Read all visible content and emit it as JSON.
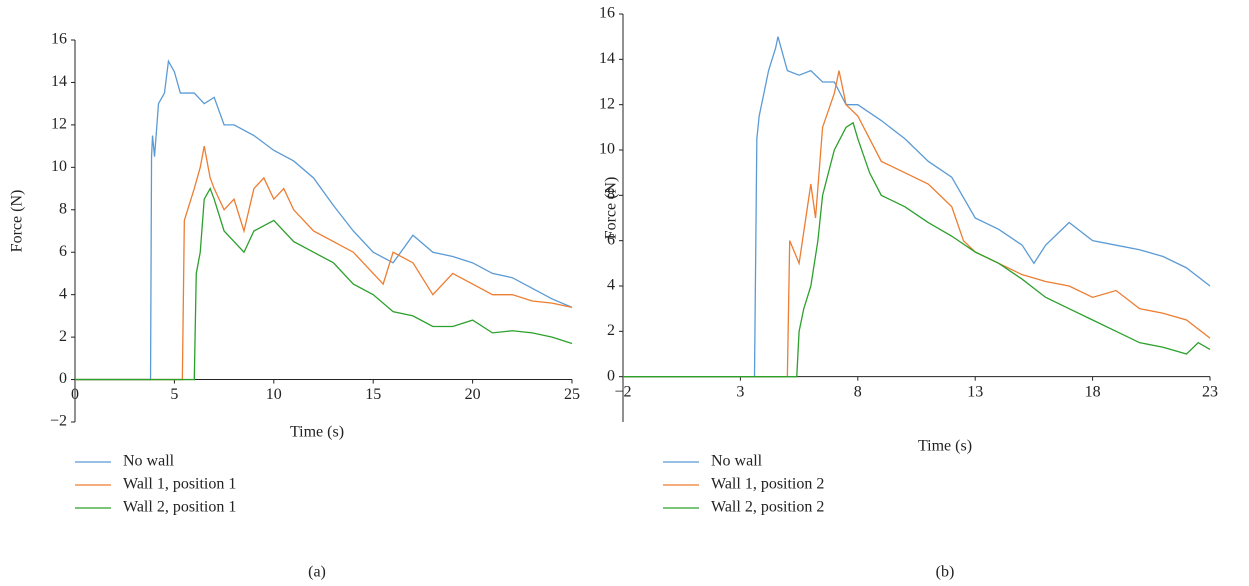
{
  "chart_data": [
    {
      "type": "line",
      "caption": "(a)",
      "x_label": "Time (s)",
      "y_label": "Force (N)",
      "xlim": [
        0,
        25
      ],
      "xticks": [
        0,
        5,
        10,
        15,
        20,
        25
      ],
      "ylim": [
        -2,
        16
      ],
      "yticks": [
        {
          "value": -2,
          "label": "−2"
        },
        0,
        2,
        4,
        6,
        8,
        10,
        12,
        14,
        16
      ],
      "series": [
        {
          "name": "No wall",
          "color": "#5b9bd5",
          "x": [
            0,
            3.8,
            3.85,
            3.9,
            4.0,
            4.2,
            4.5,
            4.7,
            5,
            5.3,
            6,
            6.5,
            7,
            7.5,
            8,
            9,
            10,
            11,
            12,
            13,
            14,
            15,
            16,
            17,
            18,
            19,
            20,
            21,
            22,
            23,
            24,
            25
          ],
          "values": [
            0,
            0,
            10.5,
            11.5,
            10.5,
            13,
            13.5,
            15,
            14.5,
            13.5,
            13.5,
            13,
            13.3,
            12,
            12,
            11.5,
            10.8,
            10.3,
            9.5,
            8.2,
            7,
            6,
            5.5,
            6.8,
            6,
            5.8,
            5.5,
            5,
            4.8,
            4.3,
            3.8,
            3.4
          ]
        },
        {
          "name": "Wall 1, position 1",
          "color": "#ed7d31",
          "x": [
            0,
            5.4,
            5.5,
            6,
            6.3,
            6.5,
            6.8,
            7,
            7.5,
            8,
            8.5,
            9,
            9.5,
            10,
            10.5,
            11,
            12,
            13,
            14,
            15,
            15.5,
            16,
            17,
            18,
            19,
            20,
            21,
            22,
            23,
            24,
            25
          ],
          "values": [
            0,
            0,
            7.5,
            9,
            10,
            11,
            9.5,
            9,
            8,
            8.5,
            7,
            9,
            9.5,
            8.5,
            9,
            8,
            7,
            6.5,
            6,
            5,
            4.5,
            6,
            5.5,
            4,
            5,
            4.5,
            4,
            4,
            3.7,
            3.6,
            3.4
          ]
        },
        {
          "name": "Wall 2, position 1",
          "color": "#2ca02c",
          "x": [
            0,
            6,
            6.1,
            6.3,
            6.5,
            6.8,
            7,
            7.5,
            8,
            8.5,
            9,
            10,
            11,
            12,
            13,
            14,
            15,
            16,
            17,
            18,
            19,
            20,
            21,
            22,
            23,
            24,
            25
          ],
          "values": [
            0,
            0,
            5,
            6,
            8.5,
            9,
            8.5,
            7,
            6.5,
            6,
            7,
            7.5,
            6.5,
            6,
            5.5,
            4.5,
            4,
            3.2,
            3,
            2.5,
            2.5,
            2.8,
            2.2,
            2.3,
            2.2,
            2.0,
            1.7
          ]
        }
      ]
    },
    {
      "type": "line",
      "caption": "(b)",
      "x_label": "Time (s)",
      "y_label": "Force (N)",
      "xlim": [
        -2,
        23
      ],
      "xticks": [
        {
          "value": -2,
          "label": "−2"
        },
        3,
        8,
        13,
        18,
        23
      ],
      "ylim": [
        -2,
        16
      ],
      "yticks": [
        0,
        2,
        4,
        6,
        8,
        10,
        12,
        14,
        16
      ],
      "series": [
        {
          "name": "No wall",
          "color": "#5b9bd5",
          "x": [
            -2,
            3.6,
            3.7,
            3.8,
            4.0,
            4.2,
            4.5,
            4.6,
            5,
            5.5,
            6,
            6.5,
            7,
            7.5,
            8,
            9,
            10,
            11,
            12,
            13,
            14,
            15,
            15.5,
            16,
            17,
            18,
            19,
            20,
            21,
            22,
            23
          ],
          "values": [
            0,
            0,
            10.5,
            11.5,
            12.5,
            13.5,
            14.5,
            15,
            13.5,
            13.3,
            13.5,
            13,
            13,
            12,
            12,
            11.3,
            10.5,
            9.5,
            8.8,
            7,
            6.5,
            5.8,
            5,
            5.8,
            6.8,
            6,
            5.8,
            5.6,
            5.3,
            4.8,
            4
          ]
        },
        {
          "name": "Wall 1, position 2",
          "color": "#ed7d31",
          "x": [
            -2,
            5,
            5.1,
            5.5,
            6,
            6.2,
            6.5,
            7,
            7.2,
            7.5,
            8,
            9,
            10,
            11,
            12,
            12.5,
            13,
            14,
            15,
            16,
            17,
            18,
            19,
            20,
            21,
            22,
            23
          ],
          "values": [
            0,
            0,
            6,
            5,
            8.5,
            7,
            11,
            12.5,
            13.5,
            12,
            11.5,
            9.5,
            9,
            8.5,
            7.5,
            6,
            5.5,
            5,
            4.5,
            4.2,
            4,
            3.5,
            3.8,
            3,
            2.8,
            2.5,
            1.7
          ]
        },
        {
          "name": "Wall 2, position 2",
          "color": "#2ca02c",
          "x": [
            -2,
            5.4,
            5.5,
            5.7,
            6,
            6.3,
            6.5,
            7,
            7.5,
            7.8,
            8,
            8.5,
            9,
            10,
            11,
            12,
            13,
            14,
            15,
            16,
            17,
            18,
            19,
            20,
            21,
            22,
            22.5,
            23
          ],
          "values": [
            0,
            0,
            2,
            3,
            4,
            6,
            8,
            10,
            11,
            11.2,
            10.5,
            9,
            8,
            7.5,
            6.8,
            6.2,
            5.5,
            5,
            4.3,
            3.5,
            3,
            2.5,
            2,
            1.5,
            1.3,
            1,
            1.5,
            1.2
          ]
        }
      ]
    }
  ]
}
